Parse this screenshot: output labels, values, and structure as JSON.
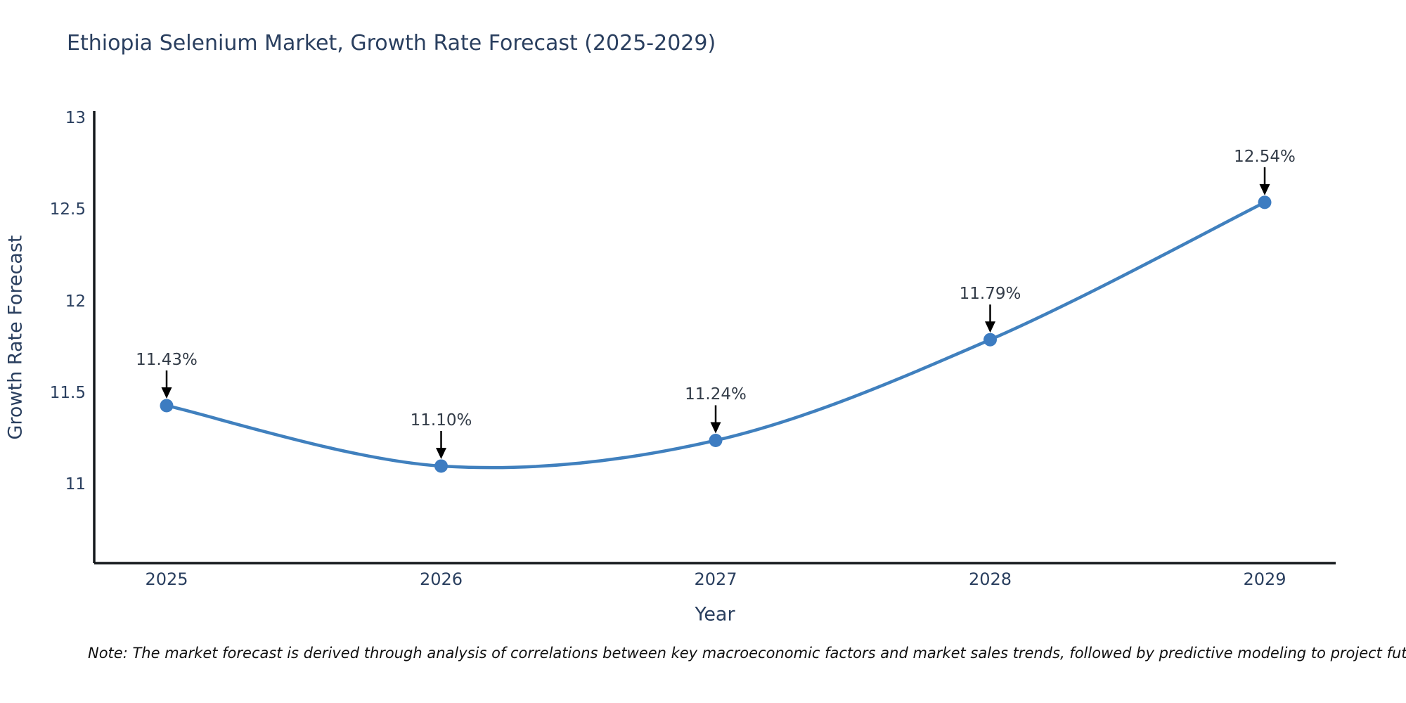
{
  "note": "Note: The market forecast is derived through analysis of correlations between key macroeconomic factors and market sales trends, followed by predictive modeling to project future sal",
  "chart_data": {
    "type": "line",
    "title": "Ethiopia Selenium Market, Growth Rate Forecast (2025-2029)",
    "xlabel": "Year",
    "ylabel": "Growth Rate Forecast",
    "x": [
      2025,
      2026,
      2027,
      2028,
      2029
    ],
    "xtick_labels": [
      "2025",
      "2026",
      "2027",
      "2028",
      "2029"
    ],
    "series": [
      {
        "name": "Growth Rate Forecast",
        "values": [
          11.43,
          11.1,
          11.24,
          11.79,
          12.54
        ]
      }
    ],
    "point_labels": [
      "11.43%",
      "11.10%",
      "11.24%",
      "11.79%",
      "12.54%"
    ],
    "yticks": [
      13,
      12.5,
      12,
      11.5,
      11
    ],
    "ytick_labels": [
      "13",
      "12.5",
      "12",
      "11.5",
      "11"
    ],
    "ylim": [
      10.57,
      13.04
    ],
    "grid": false,
    "legend": "none",
    "line_shape": "spline",
    "colors": {
      "line": "#4080be",
      "marker": "#3d7cc1",
      "axis": "#14181c",
      "tick_text": "#2a3f5f",
      "annotation_text": "#333c48",
      "arrow": "#000000",
      "background": "#ffffff"
    }
  }
}
